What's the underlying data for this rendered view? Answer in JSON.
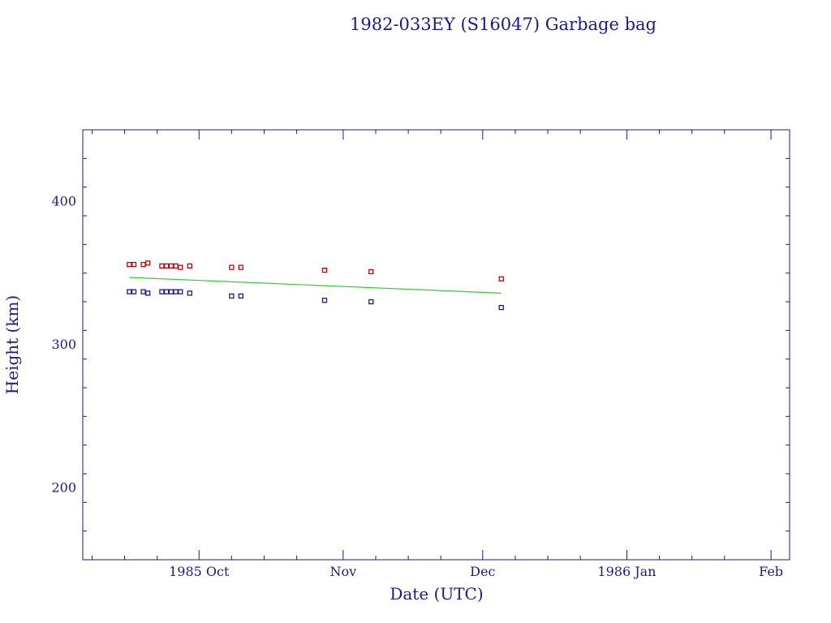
{
  "chart_data": {
    "type": "scatter",
    "title": "1982-033EY (S16047) Garbage bag",
    "xlabel": "Date (UTC)",
    "ylabel": "Height (km)",
    "x_axis": {
      "type": "date",
      "range": [
        "1985-09-06",
        "1986-02-05"
      ],
      "ticks": [
        {
          "date": "1985-10-01",
          "label": "1985 Oct"
        },
        {
          "date": "1985-11-01",
          "label": "Nov"
        },
        {
          "date": "1985-12-01",
          "label": "Dec"
        },
        {
          "date": "1986-01-01",
          "label": "1986 Jan"
        },
        {
          "date": "1986-02-01",
          "label": "Feb"
        }
      ]
    },
    "y_axis": {
      "range": [
        150,
        450
      ],
      "ticks": [
        {
          "value": 200,
          "label": "200"
        },
        {
          "value": 300,
          "label": "300"
        },
        {
          "value": 400,
          "label": "400"
        }
      ]
    },
    "grid": false,
    "series": [
      {
        "color": "#cc0000",
        "marker": "square",
        "points": [
          {
            "x": "1985-09-16",
            "y": 356
          },
          {
            "x": "1985-09-17",
            "y": 356
          },
          {
            "x": "1985-09-19",
            "y": 356
          },
          {
            "x": "1985-09-20",
            "y": 357
          },
          {
            "x": "1985-09-23",
            "y": 355
          },
          {
            "x": "1985-09-24",
            "y": 355
          },
          {
            "x": "1985-09-25",
            "y": 355
          },
          {
            "x": "1985-09-26",
            "y": 355
          },
          {
            "x": "1985-09-27",
            "y": 354
          },
          {
            "x": "1985-09-29",
            "y": 355
          },
          {
            "x": "1985-10-08",
            "y": 354
          },
          {
            "x": "1985-10-10",
            "y": 354
          },
          {
            "x": "1985-10-28",
            "y": 352
          },
          {
            "x": "1985-11-07",
            "y": 351
          },
          {
            "x": "1985-12-05",
            "y": 346
          }
        ]
      },
      {
        "color": "#1a1a8c",
        "marker": "square",
        "points": [
          {
            "x": "1985-09-16",
            "y": 337
          },
          {
            "x": "1985-09-17",
            "y": 337
          },
          {
            "x": "1985-09-19",
            "y": 337
          },
          {
            "x": "1985-09-20",
            "y": 336
          },
          {
            "x": "1985-09-23",
            "y": 337
          },
          {
            "x": "1985-09-24",
            "y": 337
          },
          {
            "x": "1985-09-25",
            "y": 337
          },
          {
            "x": "1985-09-26",
            "y": 337
          },
          {
            "x": "1985-09-27",
            "y": 337
          },
          {
            "x": "1985-09-29",
            "y": 336
          },
          {
            "x": "1985-10-08",
            "y": 334
          },
          {
            "x": "1985-10-10",
            "y": 334
          },
          {
            "x": "1985-10-28",
            "y": 331
          },
          {
            "x": "1985-11-07",
            "y": 330
          },
          {
            "x": "1985-12-05",
            "y": 326
          }
        ]
      },
      {
        "type": "line",
        "color": "#33cc33",
        "points": [
          {
            "x": "1985-09-16",
            "y": 347
          },
          {
            "x": "1985-12-05",
            "y": 336
          }
        ]
      }
    ]
  }
}
